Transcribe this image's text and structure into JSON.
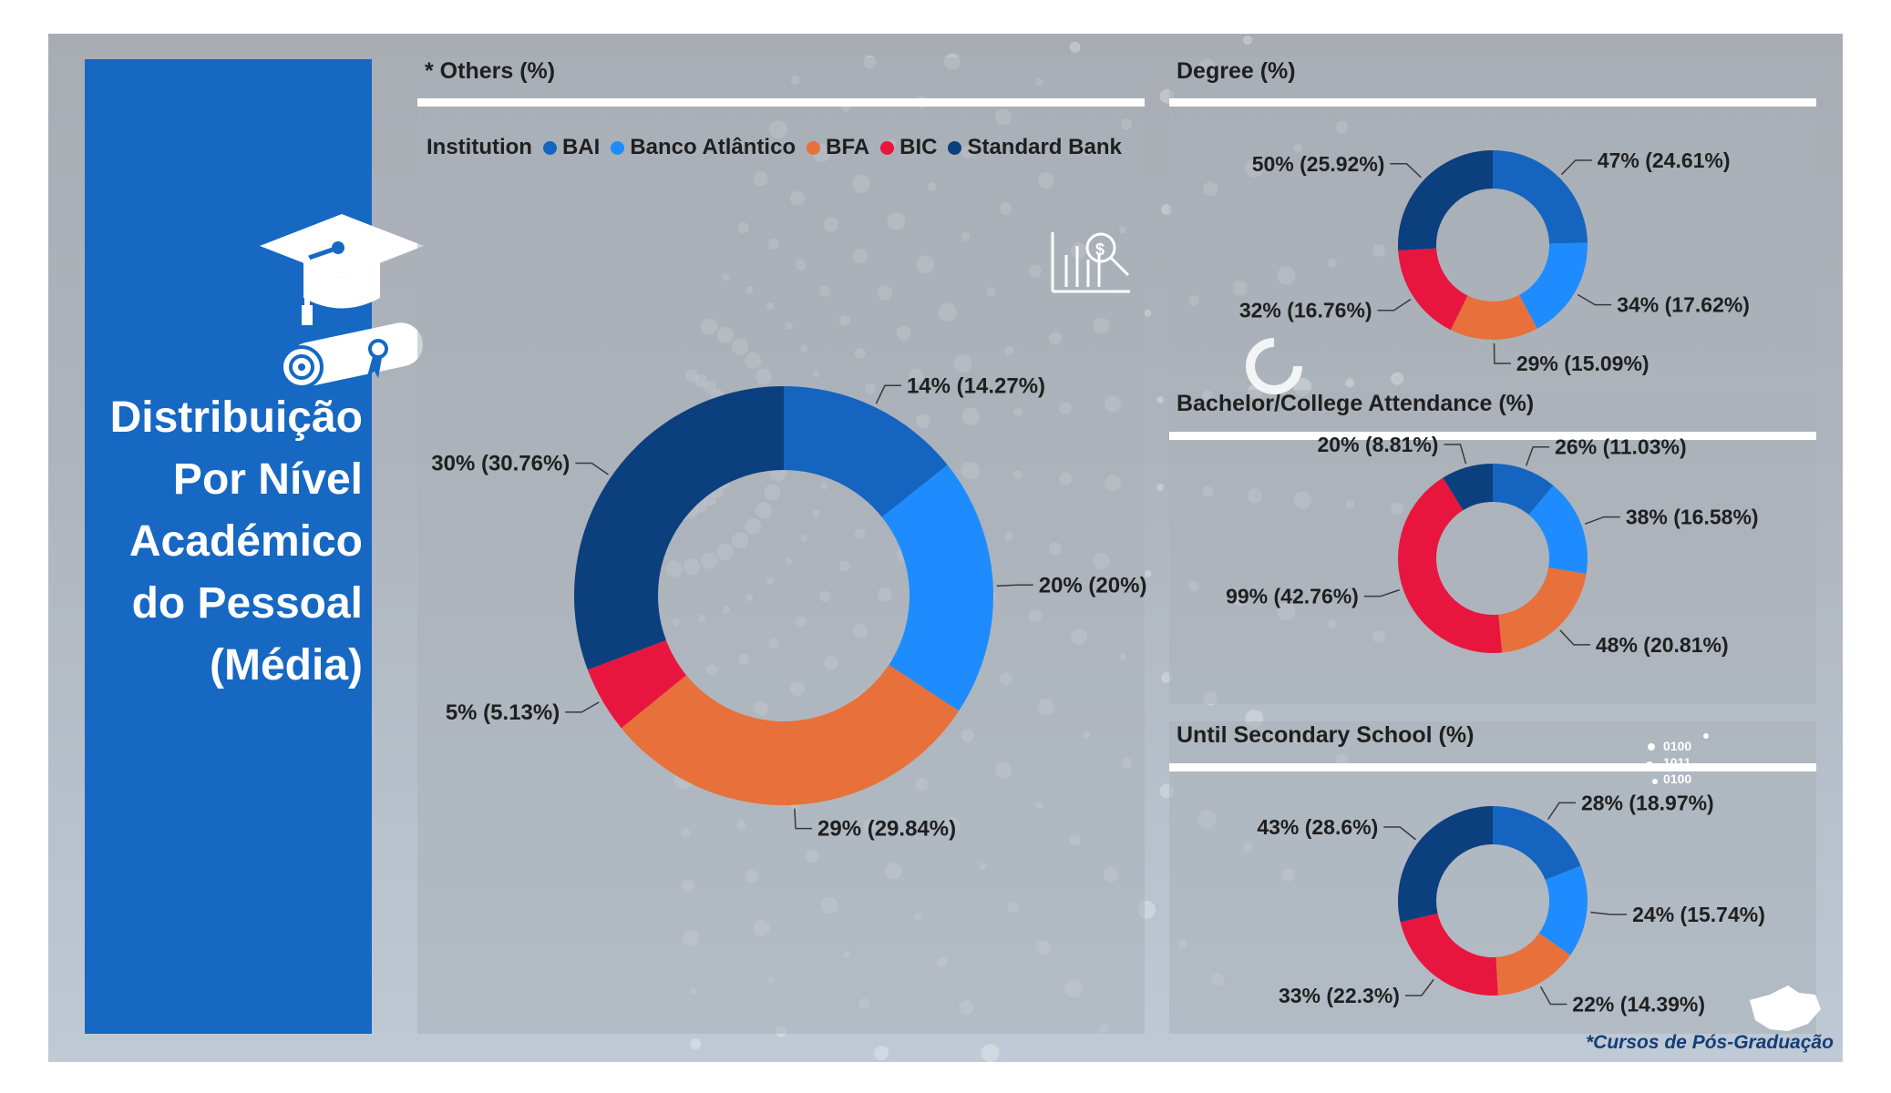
{
  "sidebar": {
    "title_lines": [
      "Distribuição",
      "Por Nível",
      "Académico",
      "do Pessoal",
      "(Média)"
    ]
  },
  "legend": {
    "title": "Institution",
    "items": [
      {
        "label": "BAI",
        "color": "#1565c0"
      },
      {
        "label": "Banco Atlântico",
        "color": "#1e8cff"
      },
      {
        "label": "BFA",
        "color": "#e8703a"
      },
      {
        "label": "BIC",
        "color": "#e8163f"
      },
      {
        "label": "Standard Bank",
        "color": "#0c3f7e"
      }
    ]
  },
  "footnote": "*Cursos de Pós-Graduação",
  "chart_data": [
    {
      "type": "pie",
      "title": "* Others (%)",
      "categories": [
        "BAI",
        "Banco Atlântico",
        "BFA",
        "BIC",
        "Standard Bank"
      ],
      "values": [
        14.27,
        20,
        29.84,
        5.13,
        30.76
      ],
      "labels": [
        "14% (14.27%)",
        "20% (20%)",
        "29% (29.84%)",
        "5% (5.13%)",
        "30% (30.76%)"
      ],
      "colors": [
        "#1565c0",
        "#1e8cff",
        "#e8703a",
        "#e8163f",
        "#0c3f7e"
      ]
    },
    {
      "type": "pie",
      "title": "Degree (%)",
      "categories": [
        "BAI",
        "Banco Atlântico",
        "BFA",
        "BIC",
        "Standard Bank"
      ],
      "values": [
        24.61,
        17.62,
        15.09,
        16.76,
        25.92
      ],
      "labels": [
        "47% (24.61%)",
        "34% (17.62%)",
        "29% (15.09%)",
        "32% (16.76%)",
        "50% (25.92%)"
      ],
      "colors": [
        "#1565c0",
        "#1e8cff",
        "#e8703a",
        "#e8163f",
        "#0c3f7e"
      ]
    },
    {
      "type": "pie",
      "title": "Bachelor/College Attendance (%)",
      "categories": [
        "BAI",
        "Banco Atlântico",
        "BFA",
        "BIC",
        "Standard Bank"
      ],
      "values": [
        11.03,
        16.58,
        20.81,
        42.76,
        8.81
      ],
      "labels": [
        "26% (11.03%)",
        "38% (16.58%)",
        "48% (20.81%)",
        "99% (42.76%)",
        "20% (8.81%)"
      ],
      "colors": [
        "#1565c0",
        "#1e8cff",
        "#e8703a",
        "#e8163f",
        "#0c3f7e"
      ]
    },
    {
      "type": "pie",
      "title": "Until Secondary School (%)",
      "categories": [
        "BAI",
        "Banco Atlântico",
        "BFA",
        "BIC",
        "Standard Bank"
      ],
      "values": [
        18.97,
        15.74,
        14.39,
        22.3,
        28.6
      ],
      "labels": [
        "28% (18.97%)",
        "24% (15.74%)",
        "22% (14.39%)",
        "33% (22.3%)",
        "43% (28.6%)"
      ],
      "colors": [
        "#1565c0",
        "#1e8cff",
        "#e8703a",
        "#e8163f",
        "#0c3f7e"
      ]
    }
  ]
}
